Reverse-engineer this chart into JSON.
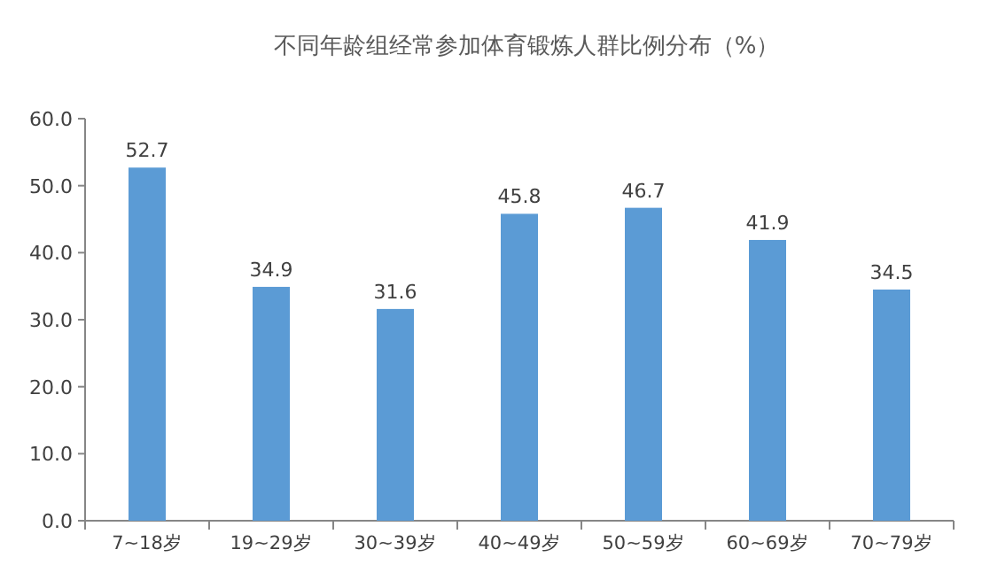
{
  "chart_data": {
    "type": "bar",
    "title": "不同年龄组经常参加体育锻炼人群比例分布（%）",
    "categories": [
      "7~18岁",
      "19~29岁",
      "30~39岁",
      "40~49岁",
      "50~59岁",
      "60~69岁",
      "70~79岁"
    ],
    "values": [
      52.7,
      34.9,
      31.6,
      45.8,
      46.7,
      41.9,
      34.5
    ],
    "color": "#5b9bd5",
    "data_labels": true,
    "grid": false,
    "ylim": [
      0,
      60
    ],
    "yticks": [
      {
        "value": 0,
        "label": "0.0"
      },
      {
        "value": 10,
        "label": "10.0"
      },
      {
        "value": 20,
        "label": "20.0"
      },
      {
        "value": 30,
        "label": "30.0"
      },
      {
        "value": 40,
        "label": "40.0"
      },
      {
        "value": 50,
        "label": "50.0"
      },
      {
        "value": 60,
        "label": "60.0"
      }
    ]
  }
}
